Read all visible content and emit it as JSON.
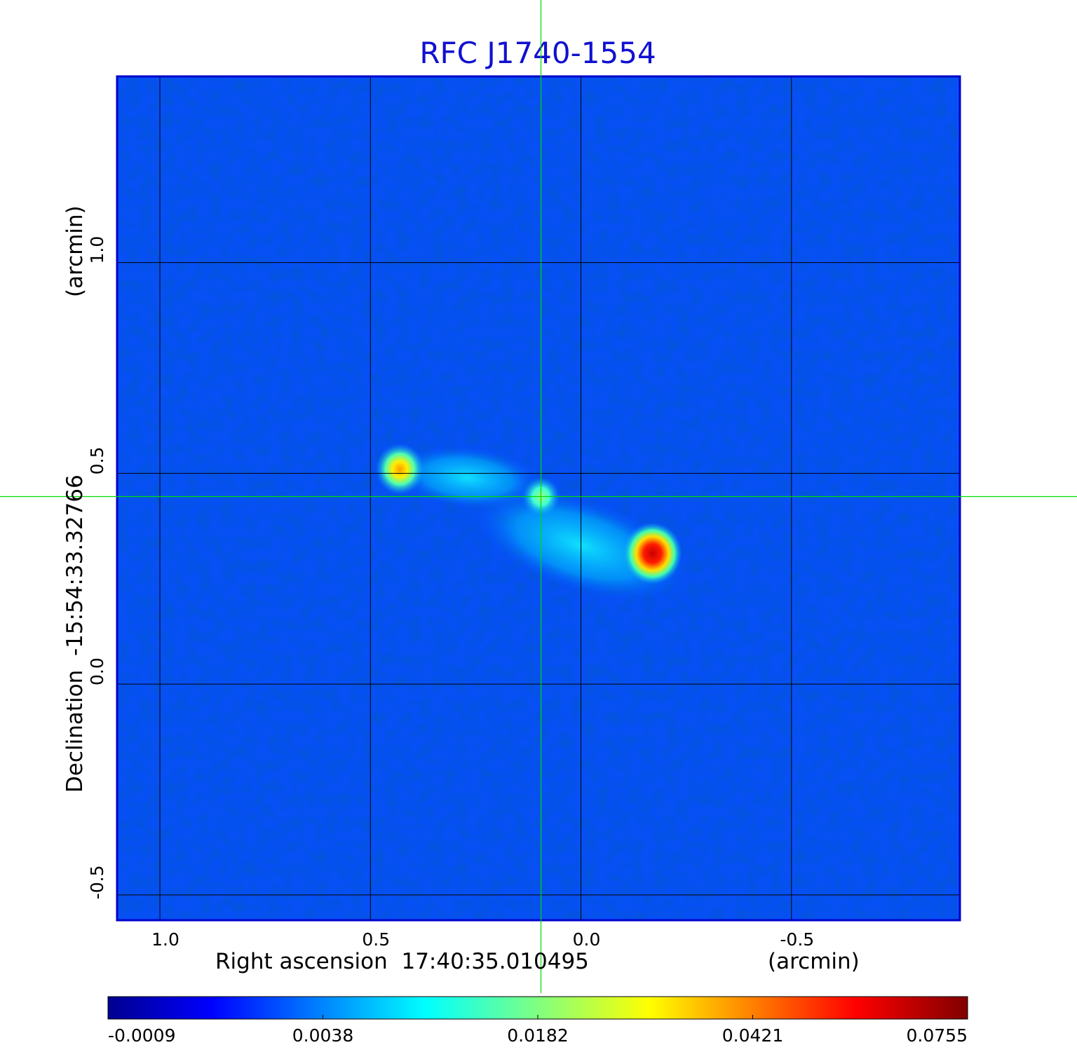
{
  "chart_data": {
    "type": "heatmap",
    "title": "RFC J1740-1554",
    "xlabel": "Right ascension  17:40:35.010495",
    "xunit": "(arcmin)",
    "ylabel": "Declination  -15:54:33.32766",
    "yunit": "(arcmin)",
    "xlim": [
      1.1,
      -0.9
    ],
    "ylim": [
      -0.56,
      1.44
    ],
    "x_ticks": [
      1.0,
      0.5,
      0.0,
      -0.5
    ],
    "x_tick_labels": [
      "1.0",
      "0.5",
      "0.0",
      "-0.5"
    ],
    "y_ticks": [
      1.0,
      0.5,
      0.0,
      -0.5
    ],
    "y_tick_labels": [
      "1.0",
      "0.5",
      "0.0",
      "-0.5"
    ],
    "grid": true,
    "crosshair": {
      "x": 0.095,
      "y": 0.445
    },
    "background_value": -0.0009,
    "sources": [
      {
        "x": 0.43,
        "y": 0.51,
        "peak": 0.048
      },
      {
        "x": 0.095,
        "y": 0.445,
        "peak": 0.018
      },
      {
        "x": -0.17,
        "y": 0.31,
        "peak": 0.0755
      }
    ],
    "diffuse_emission": [
      {
        "x": 0.27,
        "y": 0.49,
        "value": 0.006
      },
      {
        "x": 0.0,
        "y": 0.33,
        "value": 0.009
      }
    ],
    "colorbar": {
      "orientation": "horizontal",
      "ticks": [
        -0.0009,
        0.0038,
        0.0182,
        0.0421,
        0.0755
      ],
      "tick_labels": [
        "-0.0009",
        "0.0038",
        "0.0182",
        "0.0421",
        "0.0755"
      ],
      "colormap": "jet"
    },
    "colors": {
      "title": "#1010d0",
      "crosshair": "#00dd00",
      "grid": "#000000",
      "frame": "#0000cc"
    }
  }
}
